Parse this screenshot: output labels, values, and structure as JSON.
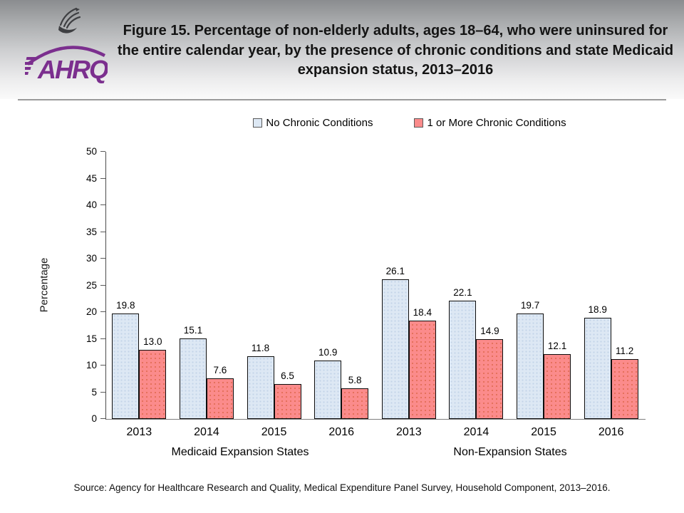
{
  "header": {
    "logo_text": "AHRQ",
    "title": "Figure 15. Percentage of non-elderly adults, ages 18–64, who were uninsured for the entire calendar year, by the presence of chronic conditions and state Medicaid expansion status, 2013–2016"
  },
  "legend": [
    {
      "label": "No Chronic Conditions",
      "color": "#dde8f4"
    },
    {
      "label": "1 or More Chronic Conditions",
      "color": "#fb8b8b"
    }
  ],
  "chart_data": {
    "type": "bar",
    "ylabel": "Percentage",
    "ylim": [
      0,
      50
    ],
    "ytick_step": 5,
    "grid": false,
    "legend_position": "top",
    "categories": [
      "2013",
      "2014",
      "2015",
      "2016",
      "2013",
      "2014",
      "2015",
      "2016"
    ],
    "group_sections": [
      {
        "label": "Medicaid Expansion States",
        "groups": [
          0,
          1,
          2,
          3
        ]
      },
      {
        "label": "Non-Expansion States",
        "groups": [
          4,
          5,
          6,
          7
        ]
      }
    ],
    "series": [
      {
        "name": "No Chronic Conditions",
        "color": "#dde8f4",
        "values": [
          19.8,
          15.1,
          11.8,
          10.9,
          26.1,
          22.1,
          19.7,
          18.9
        ],
        "value_labels": [
          "19.8",
          "15.1",
          "11.8",
          "10.9",
          "26.1",
          "22.1",
          "19.7",
          "18.9"
        ]
      },
      {
        "name": "1 or More Chronic Conditions",
        "color": "#fb8b8b",
        "values": [
          13.0,
          7.6,
          6.5,
          5.8,
          18.4,
          14.9,
          12.1,
          11.2
        ],
        "value_labels": [
          "13.0",
          "7.6",
          "6.5",
          "5.8",
          "18.4",
          "14.9",
          "12.1",
          "11.2"
        ]
      }
    ]
  },
  "source": "Source: Agency for Healthcare Research and Quality, Medical Expenditure Panel Survey, Household Component, 2013–2016."
}
